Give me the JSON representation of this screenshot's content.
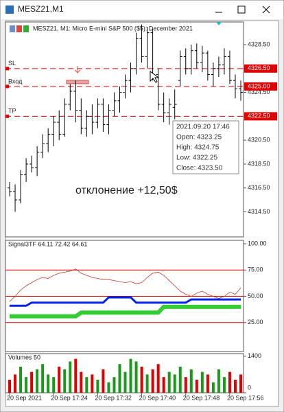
{
  "window": {
    "title": "MESZ21,M1"
  },
  "price_chart": {
    "header": "MESZ21, M1:  Micro E-mini S&P 500 ($5): December 2021",
    "ylim": [
      4312.4,
      4330.4
    ],
    "yticks": [
      {
        "value": 4328.5,
        "label": "4328.50"
      },
      {
        "value": 4326.5,
        "label": "4326.50"
      },
      {
        "value": 4324.5,
        "label": "4324.50"
      },
      {
        "value": 4322.5,
        "label": "4322.50"
      },
      {
        "value": 4320.5,
        "label": "4320.50"
      },
      {
        "value": 4318.5,
        "label": "4318.50"
      },
      {
        "value": 4316.5,
        "label": "4316.50"
      },
      {
        "value": 4314.5,
        "label": "4314.50"
      }
    ],
    "levels": [
      {
        "name": "SL",
        "value": 4326.5,
        "label": "4326.50"
      },
      {
        "name": "Вход",
        "value": 4325,
        "label": "4325.00"
      },
      {
        "name": "TP",
        "value": 4322.5,
        "label": "4322.50"
      }
    ],
    "level_color": "#e00000",
    "bar_color": "#000000",
    "bars": [
      [
        4316.5,
        4317,
        4315.8,
        4316.2
      ],
      [
        4316.2,
        4316.8,
        4314.5,
        4315.5
      ],
      [
        4315.5,
        4318,
        4315.2,
        4317.6
      ],
      [
        4317.6,
        4319,
        4317,
        4318.5
      ],
      [
        4318.5,
        4319.2,
        4317.8,
        4318.2
      ],
      [
        4318.2,
        4320,
        4317.5,
        4319.5
      ],
      [
        4319.5,
        4321,
        4319,
        4320.2
      ],
      [
        4320.2,
        4321.5,
        4319.5,
        4321
      ],
      [
        4321,
        4322.5,
        4320,
        4322
      ],
      [
        4322,
        4323,
        4320.5,
        4321
      ],
      [
        4321,
        4324,
        4320.8,
        4323.5
      ],
      [
        4323.5,
        4325.2,
        4323,
        4324.6
      ],
      [
        4324.6,
        4325.5,
        4322,
        4323
      ],
      [
        4323,
        4324,
        4321,
        4321.5
      ],
      [
        4321.5,
        4323,
        4320.8,
        4322.5
      ],
      [
        4322.5,
        4323.5,
        4321,
        4322
      ],
      [
        4322,
        4324,
        4321.5,
        4323.5
      ],
      [
        4323.5,
        4324,
        4321.2,
        4321.8
      ],
      [
        4321.8,
        4323.5,
        4321,
        4323
      ],
      [
        4323,
        4324.5,
        4322.5,
        4323.8
      ],
      [
        4323.8,
        4325,
        4322.8,
        4324.5
      ],
      [
        4324.5,
        4326,
        4324,
        4325.5
      ],
      [
        4325.5,
        4327,
        4324.5,
        4326.5
      ],
      [
        4326.5,
        4329.5,
        4326,
        4329
      ],
      [
        4329,
        4330.2,
        4327,
        4327.5
      ],
      [
        4327.5,
        4330,
        4326.5,
        4329.5
      ],
      [
        4329.5,
        4329.8,
        4325.5,
        4326
      ],
      [
        4326,
        4326.5,
        4323,
        4323.5
      ],
      [
        4323.5,
        4324.5,
        4322,
        4322.8
      ],
      [
        4322.8,
        4324,
        4321.8,
        4323.5
      ],
      [
        4323.25,
        4324.75,
        4322.25,
        4323.5
      ],
      [
        4325.5,
        4328,
        4325,
        4327.5
      ],
      [
        4327.5,
        4328.2,
        4326,
        4326.5
      ],
      [
        4326.5,
        4328.5,
        4326,
        4328
      ],
      [
        4328,
        4328.6,
        4326.5,
        4327
      ],
      [
        4327,
        4328.4,
        4326.2,
        4327.8
      ],
      [
        4327.8,
        4328,
        4325.5,
        4326
      ],
      [
        4326,
        4327,
        4325,
        4326.5
      ],
      [
        4326.5,
        4327.5,
        4325.8,
        4326.8
      ],
      [
        4326.8,
        4328.2,
        4326,
        4327.5
      ],
      [
        4327.5,
        4328,
        4325.2,
        4325.5
      ],
      [
        4325.5,
        4326,
        4324,
        4324.8
      ],
      [
        4324.8,
        4325.5,
        4323.8,
        4324.5
      ]
    ],
    "tooltip": [
      "2021.09.20 17:46",
      "Open: 4323.25",
      "High: 4324.75",
      "Low: 4322.25",
      "Close: 4323.50"
    ],
    "annotation": "отклонение +12,50$"
  },
  "indicator": {
    "header": "Signal3TF 64.11 72.42 64.61",
    "ylim": [
      -2.6,
      103.3
    ],
    "yticks": [
      {
        "value": 100,
        "label": "100.00"
      },
      {
        "value": 75,
        "label": "75.00"
      },
      {
        "value": 50,
        "label": "50.00"
      },
      {
        "value": 25,
        "label": "25.00"
      }
    ],
    "levels": [
      75,
      50,
      25
    ],
    "level_color": "#e00000",
    "series": [
      {
        "color": "#c0392b",
        "width": 0.8,
        "values": [
          45,
          50,
          56,
          60,
          63,
          66,
          68,
          67,
          70,
          72,
          73,
          74,
          76,
          72,
          70,
          68,
          67,
          66,
          66,
          65,
          64,
          63,
          64,
          62,
          63,
          68,
          72,
          73,
          70,
          65,
          60,
          55,
          52,
          50,
          53,
          55,
          52,
          50,
          48,
          50,
          54,
          52,
          58
        ]
      },
      {
        "color": "#0022ee",
        "width": 3,
        "values": [
          41,
          41,
          41,
          41,
          44,
          44,
          44,
          44,
          44,
          44,
          44,
          44,
          44,
          44,
          44,
          44,
          44,
          44,
          49,
          49,
          49,
          49,
          49,
          44,
          44,
          44,
          44,
          44,
          44,
          44,
          44,
          44,
          44,
          47,
          47,
          47,
          47,
          47,
          47,
          47,
          47,
          47,
          47
        ]
      },
      {
        "color": "#33cc33",
        "width": 6,
        "values": [
          31,
          31,
          31,
          31,
          31,
          31,
          31,
          31,
          31,
          31,
          31,
          31,
          31,
          34.5,
          34.5,
          34.5,
          34.5,
          34.5,
          34.5,
          34.5,
          34.5,
          34.5,
          34.5,
          34.5,
          34.5,
          34.5,
          34.5,
          34.5,
          40,
          40,
          40,
          40,
          40,
          40,
          40,
          40,
          40,
          40,
          40,
          40,
          40,
          40,
          40
        ]
      }
    ]
  },
  "volumes": {
    "header": "Volumes 50",
    "ylim": [
      0,
      1500
    ],
    "yticks": [
      1400,
      0
    ],
    "up_color": "#1a9a1a",
    "down_color": "#e00000",
    "values": [
      500,
      700,
      1000,
      600,
      800,
      900,
      1100,
      700,
      600,
      1000,
      900,
      1200,
      1300,
      800,
      600,
      700,
      500,
      900,
      400,
      600,
      1100,
      800,
      1300,
      1200,
      1000,
      700,
      900,
      1100,
      600,
      800,
      700,
      1000,
      600,
      900,
      500,
      800,
      700,
      400,
      900,
      600,
      800,
      500,
      700
    ]
  },
  "time_axis": {
    "xlim": [
      -0.75,
      42.5
    ],
    "xticks": [
      {
        "value": 0,
        "label": "20 Sep 2021"
      },
      {
        "value": 8,
        "label": "20 Sep 17:24"
      },
      {
        "value": 16,
        "label": "20 Sep 17:32"
      },
      {
        "value": 24,
        "label": "20 Sep 17:40"
      },
      {
        "value": 32,
        "label": "20 Sep 17:48"
      },
      {
        "value": 40,
        "label": "20 Sep 17:56"
      }
    ]
  }
}
